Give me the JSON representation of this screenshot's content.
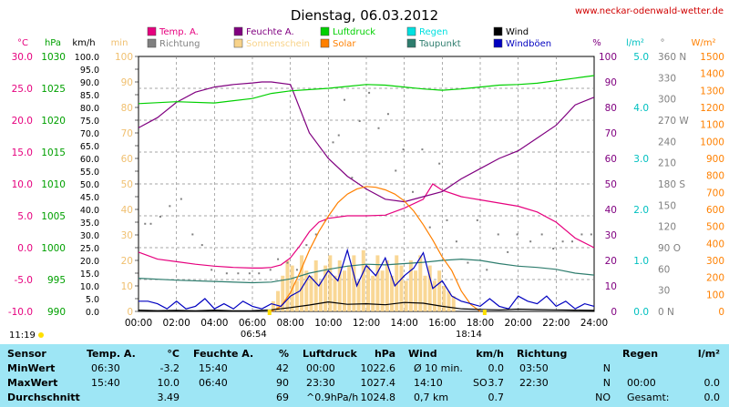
{
  "chart_data": {
    "type": "line",
    "title": "Dienstag, 06.03.2012",
    "site_url": "www.neckar-odenwald-wetter.de",
    "x_ticks": [
      "00:00",
      "02:00",
      "04:00",
      "06:00",
      "08:00",
      "10:00",
      "12:00",
      "14:00",
      "16:00",
      "18:00",
      "20:00",
      "22:00",
      "24:00"
    ],
    "sunrise": "06:54",
    "sunset": "18:14",
    "daylight": "11:19",
    "legend": [
      {
        "name": "Temp. A.",
        "color": "#e6007e"
      },
      {
        "name": "Feuchte A.",
        "color": "#800080"
      },
      {
        "name": "Luftdruck",
        "color": "#00d000"
      },
      {
        "name": "Regen",
        "color": "#00e0e0"
      },
      {
        "name": "Wind",
        "color": "#000000"
      },
      {
        "name": "Richtung",
        "color": "#808080"
      },
      {
        "name": "Sonnenschein",
        "color": "#f8d38a"
      },
      {
        "name": "Solar",
        "color": "#ff8000"
      },
      {
        "name": "Taupunkt",
        "color": "#2e7d6e"
      },
      {
        "name": "Windböen",
        "color": "#0000c0"
      }
    ],
    "axes": {
      "temp": {
        "unit": "°C",
        "color": "#e6007e",
        "ticks": [
          "30.0",
          "25.0",
          "20.0",
          "15.0",
          "10.0",
          "5.0",
          "0.0",
          "-5.0",
          "-10.0"
        ],
        "min": -10,
        "max": 30
      },
      "pressure": {
        "unit": "hPa",
        "color": "#00a000",
        "ticks": [
          "1030",
          "1025",
          "1020",
          "1015",
          "1010",
          "1005",
          "1000",
          "995",
          "990"
        ],
        "min": 990,
        "max": 1030
      },
      "wind": {
        "unit": "km/h",
        "color": "#000000",
        "ticks": [
          "100.0",
          "95.0",
          "90.0",
          "85.0",
          "80.0",
          "75.0",
          "70.0",
          "65.0",
          "60.0",
          "55.0",
          "50.0",
          "45.0",
          "40.0",
          "35.0",
          "30.0",
          "25.0",
          "20.0",
          "15.0",
          "10.0",
          "5.0",
          "0.0"
        ],
        "min": 0,
        "max": 100
      },
      "sunshine": {
        "unit": "min",
        "color": "#f0c070",
        "ticks": [
          "100",
          "90",
          "80",
          "70",
          "60",
          "50",
          "40",
          "30",
          "20",
          "10",
          "0"
        ],
        "min": 0,
        "max": 100
      },
      "humidity": {
        "unit": "%",
        "color": "#800080",
        "ticks": [
          "100",
          "90",
          "80",
          "70",
          "60",
          "50",
          "40",
          "30",
          "20",
          "10",
          "0"
        ],
        "min": 0,
        "max": 100
      },
      "rain": {
        "unit": "l/m²",
        "color": "#00c0c0",
        "ticks": [
          "5.0",
          "4.0",
          "3.0",
          "2.0",
          "1.0",
          "0.0"
        ],
        "min": 0,
        "max": 5
      },
      "direction": {
        "unit": "°",
        "color": "#808080",
        "ticks": [
          "360 N",
          "330",
          "300",
          "270 W",
          "240",
          "210",
          "180 S",
          "150",
          "120",
          "90 O",
          "60",
          "30",
          "0 N"
        ],
        "min": 0,
        "max": 360
      },
      "solar": {
        "unit": "W/m²",
        "color": "#ff8000",
        "ticks": [
          "1500",
          "1400",
          "1300",
          "1200",
          "1100",
          "1000",
          "900",
          "800",
          "700",
          "600",
          "500",
          "400",
          "300",
          "200",
          "100",
          "0"
        ],
        "min": 0,
        "max": 1500
      }
    },
    "series": [
      {
        "name": "Temp. A.",
        "axis": "temp",
        "color": "#e6007e",
        "x": [
          0,
          1,
          2,
          3,
          4,
          5,
          6,
          6.5,
          7,
          7.5,
          8,
          8.5,
          9,
          9.5,
          10,
          11,
          12,
          13,
          14,
          15,
          15.5,
          16,
          17,
          18,
          19,
          20,
          21,
          22,
          23,
          24
        ],
        "y": [
          -0.7,
          -1.8,
          -2.2,
          -2.6,
          -2.9,
          -3.1,
          -3.2,
          -3.2,
          -3.1,
          -2.7,
          -1.6,
          0.3,
          2.5,
          4.0,
          4.6,
          5.0,
          5.0,
          5.1,
          6.2,
          7.6,
          10.0,
          9.0,
          8.0,
          7.5,
          7.0,
          6.5,
          5.6,
          4.0,
          1.5,
          0.0
        ]
      },
      {
        "name": "Feuchte A.",
        "axis": "humidity",
        "color": "#800080",
        "x": [
          0,
          1,
          2,
          3,
          4,
          5,
          6,
          6.5,
          7,
          8,
          9,
          10,
          11,
          12,
          13,
          14,
          15,
          16,
          17,
          18,
          19,
          20,
          21,
          22,
          23,
          24
        ],
        "y": [
          72,
          76,
          82,
          86,
          88,
          89,
          89.6,
          90,
          90,
          89,
          70,
          60,
          53,
          48,
          44,
          43,
          45,
          47,
          52,
          56,
          60,
          63,
          68,
          73,
          81,
          84
        ]
      },
      {
        "name": "Luftdruck",
        "axis": "pressure",
        "color": "#00d000",
        "x": [
          0,
          2,
          4,
          6,
          7,
          8,
          9,
          10,
          11,
          12,
          13,
          14,
          15,
          16,
          17,
          18,
          19,
          20,
          21,
          22,
          23,
          24
        ],
        "y": [
          1022.6,
          1022.9,
          1022.7,
          1023.4,
          1024.2,
          1024.6,
          1024.8,
          1025.0,
          1025.3,
          1025.6,
          1025.5,
          1025.2,
          1024.9,
          1024.7,
          1024.9,
          1025.2,
          1025.5,
          1025.6,
          1025.8,
          1026.2,
          1026.6,
          1027.0
        ]
      },
      {
        "name": "Taupunkt",
        "axis": "temp",
        "color": "#2e7d6e",
        "x": [
          0,
          2,
          4,
          6,
          7,
          8,
          9,
          10,
          11,
          12,
          13,
          14,
          15,
          16,
          17,
          18,
          19,
          20,
          21,
          22,
          23,
          24
        ],
        "y": [
          -4.8,
          -5.1,
          -5.3,
          -5.5,
          -5.4,
          -4.9,
          -4.0,
          -3.4,
          -2.9,
          -2.6,
          -2.7,
          -2.5,
          -2.3,
          -2.0,
          -1.8,
          -2.0,
          -2.5,
          -2.9,
          -3.1,
          -3.4,
          -4.0,
          -4.3
        ]
      },
      {
        "name": "Solar",
        "axis": "solar",
        "color": "#ff8000",
        "x": [
          7,
          7.5,
          8,
          8.5,
          9,
          9.5,
          10,
          10.5,
          11,
          11.5,
          12,
          12.5,
          13,
          13.5,
          14,
          14.5,
          15,
          15.5,
          16,
          16.5,
          17,
          17.5,
          18
        ],
        "y": [
          0,
          30,
          110,
          230,
          360,
          470,
          560,
          640,
          690,
          720,
          735,
          730,
          715,
          690,
          650,
          590,
          510,
          420,
          320,
          240,
          120,
          40,
          0
        ]
      },
      {
        "name": "Windböen",
        "axis": "wind",
        "color": "#0000c0",
        "x": [
          0,
          0.5,
          1,
          1.5,
          2,
          2.5,
          3,
          3.5,
          4,
          4.5,
          5,
          5.5,
          6,
          6.5,
          7,
          7.5,
          8,
          8.5,
          9,
          9.5,
          10,
          10.5,
          11,
          11.5,
          12,
          12.5,
          13,
          13.5,
          14,
          14.5,
          15,
          15.5,
          16,
          16.5,
          17,
          17.5,
          18,
          18.5,
          19,
          19.5,
          20,
          20.5,
          21,
          21.5,
          22,
          22.5,
          23,
          23.5,
          24
        ],
        "y": [
          4,
          4,
          3,
          1,
          4,
          1,
          2,
          5,
          1,
          3,
          1,
          4,
          2,
          1,
          3,
          2,
          6,
          8,
          14,
          10,
          16,
          12,
          24,
          10,
          18,
          14,
          21,
          10,
          14,
          17,
          23,
          9,
          12,
          6,
          4,
          3,
          2,
          5,
          2,
          1,
          6,
          4,
          3,
          6,
          2,
          4,
          1,
          3,
          2
        ]
      },
      {
        "name": "Wind",
        "axis": "wind",
        "color": "#000000",
        "x": [
          0,
          1,
          2,
          3,
          4,
          5,
          6,
          7,
          8,
          9,
          10,
          11,
          12,
          13,
          14,
          15,
          16,
          17,
          18,
          19,
          20,
          21,
          22,
          23,
          24
        ],
        "y": [
          0.5,
          0.3,
          0.4,
          0.2,
          0.5,
          0.2,
          0.3,
          0.6,
          1.5,
          2.5,
          3.7,
          2.8,
          3.0,
          2.6,
          3.5,
          3.2,
          2.0,
          1.0,
          0.8,
          0.6,
          0.9,
          0.7,
          0.6,
          0.5,
          0.4
        ]
      }
    ],
    "sunshine_bars": {
      "axis": "sunshine",
      "color": "#f8d38a",
      "x": [
        7,
        7.25,
        7.5,
        7.75,
        8,
        8.25,
        8.5,
        8.75,
        9,
        9.25,
        9.5,
        9.75,
        10,
        10.25,
        10.5,
        10.75,
        11,
        11.25,
        11.5,
        11.75,
        12,
        12.25,
        12.5,
        12.75,
        13,
        13.25,
        13.5,
        13.75,
        14,
        14.25,
        14.5,
        14.75,
        15,
        15.25,
        15.5,
        15.75,
        16,
        16.25,
        16.5
      ],
      "y": [
        4,
        8,
        14,
        20,
        18,
        12,
        22,
        16,
        14,
        20,
        12,
        18,
        22,
        14,
        20,
        16,
        18,
        22,
        12,
        24,
        18,
        14,
        22,
        16,
        20,
        14,
        22,
        18,
        12,
        20,
        16,
        22,
        14,
        18,
        12,
        16,
        10,
        8,
        6
      ]
    },
    "direction_points": {
      "axis": "direction",
      "color": "#808080",
      "x": [
        0.3,
        0.6,
        1.1,
        1.6,
        2.2,
        2.8,
        3.3,
        3.8,
        4.6,
        5.2,
        5.8,
        6.3,
        6.9,
        7.3,
        7.8,
        8.3,
        8.8,
        9.3,
        9.8,
        10.2,
        10.5,
        10.8,
        11.2,
        11.6,
        12.1,
        12.6,
        13.1,
        13.5,
        13.9,
        14.4,
        14.9,
        15.3,
        15.8,
        16.2,
        16.7,
        17.3,
        17.8,
        18.3,
        18.9,
        19.4,
        19.9,
        20.6,
        21.2,
        21.8,
        22.3,
        22.8,
        23.3,
        23.8
      ],
      "y": [
        125,
        125,
        135,
        150,
        160,
        110,
        95,
        60,
        55,
        55,
        55,
        55,
        60,
        75,
        70,
        60,
        95,
        110,
        130,
        240,
        250,
        300,
        190,
        270,
        310,
        260,
        280,
        200,
        230,
        170,
        230,
        120,
        210,
        130,
        100,
        70,
        130,
        60,
        110,
        85,
        110,
        100,
        110,
        90,
        100,
        100,
        110,
        110
      ]
    },
    "stats_table": {
      "headers": {
        "sensor": "Sensor",
        "temp": "Temp. A.",
        "temp_unit": "°C",
        "hum": "Feuchte A.",
        "hum_unit": "%",
        "press": "Luftdruck",
        "press_unit": "hPa",
        "wind": "Wind",
        "wind_unit": "km/h",
        "dir": "Richtung",
        "rain": "Regen",
        "rain_unit": "l/m²"
      },
      "rows": [
        {
          "label": "MinWert",
          "temp_t": "06:30",
          "temp_v": "-3.2",
          "hum_t": "15:40",
          "hum_v": "42",
          "press_t": "00:00",
          "press_v": "1022.6",
          "wind_t": "Ø 10 min.",
          "wind_v": "0.0",
          "dir_t": "03:50",
          "dir_v": "N",
          "rain_t": "",
          "rain_v": ""
        },
        {
          "label": "MaxWert",
          "temp_t": "15:40",
          "temp_v": "10.0",
          "hum_t": "06:40",
          "hum_v": "90",
          "press_t": "23:30",
          "press_v": "1027.4",
          "wind_t": "14:10",
          "wind_dir": "SO",
          "wind_v": "3.7",
          "dir_t": "22:30",
          "dir_v": "N",
          "rain_t": "00:00",
          "rain_v": "0.0"
        },
        {
          "label": "Durchschnitt",
          "temp_t": "",
          "temp_v": "3.49",
          "hum_t": "",
          "hum_v": "69",
          "press_t": "^0.9hPa/h",
          "press_v": "1024.8",
          "wind_t": "0,7 km",
          "wind_v": "0.7",
          "dir_t": "",
          "dir_v": "NO",
          "rain_t": "Gesamt:",
          "rain_v": "0.0"
        }
      ]
    }
  }
}
